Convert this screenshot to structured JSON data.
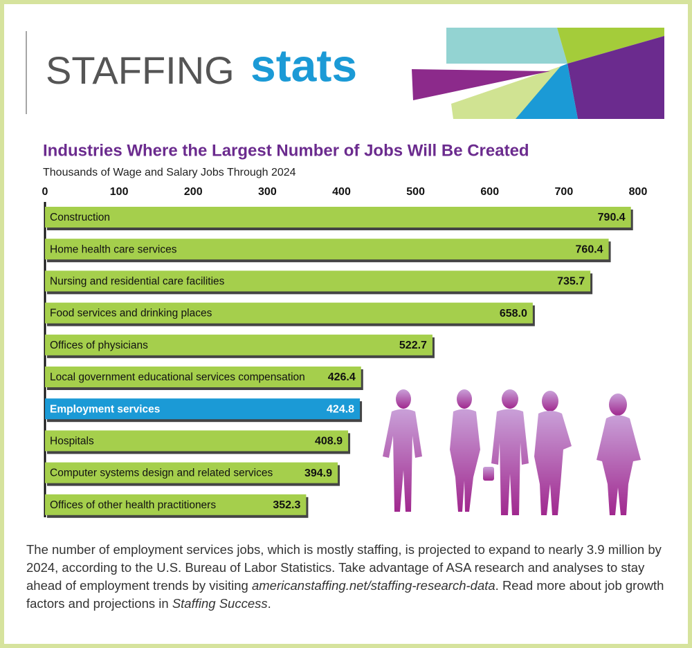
{
  "header": {
    "word1": "STAFFING",
    "word2": "stats"
  },
  "chart_data": {
    "type": "hbar",
    "title": "Industries Where the Largest Number of Jobs Will Be Created",
    "subtitle": "Thousands of Wage and Salary Jobs Through 2024",
    "categories": [
      "Construction",
      "Home health care services",
      "Nursing and residential care facilities",
      "Food services and drinking places",
      "Offices of physicians",
      "Local government educational services compensation",
      "Employment services",
      "Hospitals",
      "Computer systems design and related services",
      "Offices of other health practitioners"
    ],
    "values": [
      790.4,
      760.4,
      735.7,
      658.0,
      522.7,
      426.4,
      424.8,
      408.9,
      394.9,
      352.3
    ],
    "value_labels": [
      "790.4",
      "760.4",
      "735.7",
      "658.0",
      "522.7",
      "426.4",
      "424.8",
      "408.9",
      "394.9",
      "352.3"
    ],
    "color": "#a5cf4c",
    "colors": [
      "#a5cf4c",
      "#a5cf4c",
      "#a5cf4c",
      "#a5cf4c",
      "#a5cf4c",
      "#a5cf4c",
      "#1b9ad6",
      "#a5cf4c",
      "#a5cf4c",
      "#a5cf4c"
    ],
    "xlim": [
      0,
      800
    ],
    "xticks": [
      0,
      100,
      200,
      300,
      400,
      500,
      600,
      700,
      800
    ]
  },
  "footer": [
    "The number of employment services jobs, which is mostly staffing, is projected to expand to nearly 3.9 million by 2024, according to the U.S. Bureau of Labor Statistics. Take advantage of ASA research and analyses to stay ahead of employment trends by visiting ",
    "americanstaffing.net/staffing-research-data",
    ". Read more about job growth factors and projections in ",
    "Staffing Success",
    "."
  ]
}
